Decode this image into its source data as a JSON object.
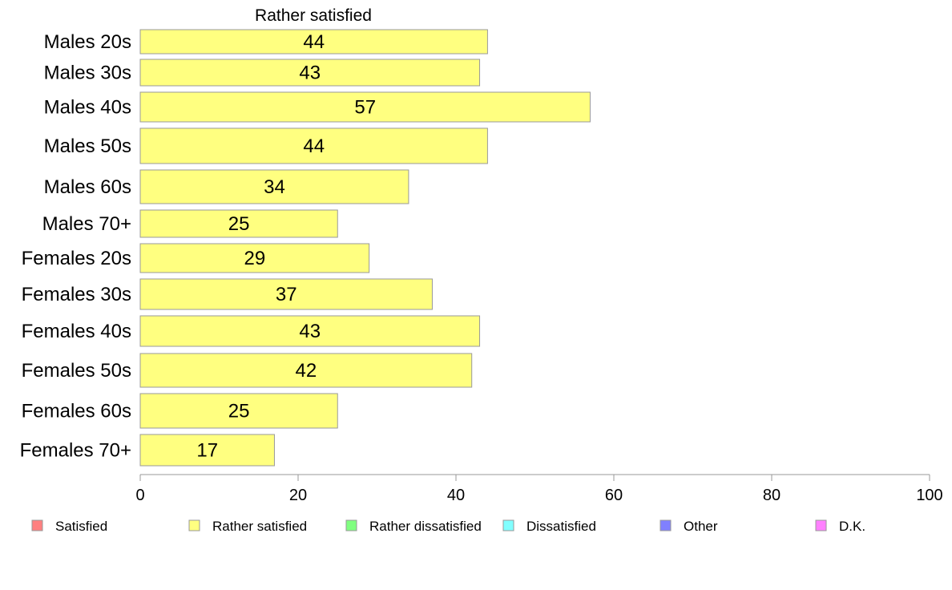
{
  "chart_data": {
    "type": "bar",
    "orientation": "horizontal",
    "title": "Rather satisfied",
    "categories": [
      "Males 20s",
      "Males 30s",
      "Males 40s",
      "Males 50s",
      "Males 60s",
      "Males 70+",
      "Females 20s",
      "Females 30s",
      "Females 40s",
      "Females 50s",
      "Females 60s",
      "Females 70+"
    ],
    "values": [
      44,
      43,
      57,
      44,
      34,
      25,
      29,
      37,
      43,
      42,
      25,
      17
    ],
    "bar_color": "#ffff80",
    "xlim": [
      0,
      100
    ],
    "xticks": [
      0,
      20,
      40,
      60,
      80,
      100
    ],
    "grid": false,
    "legend_position": "bottom",
    "legend": [
      {
        "name": "Satisfied",
        "color": "#ff8080"
      },
      {
        "name": "Rather satisfied",
        "color": "#ffff80"
      },
      {
        "name": "Rather dissatisfied",
        "color": "#80ff80"
      },
      {
        "name": "Dissatisfied",
        "color": "#80ffff"
      },
      {
        "name": "Other",
        "color": "#8080ff"
      },
      {
        "name": "D.K.",
        "color": "#ff80ff"
      }
    ]
  }
}
